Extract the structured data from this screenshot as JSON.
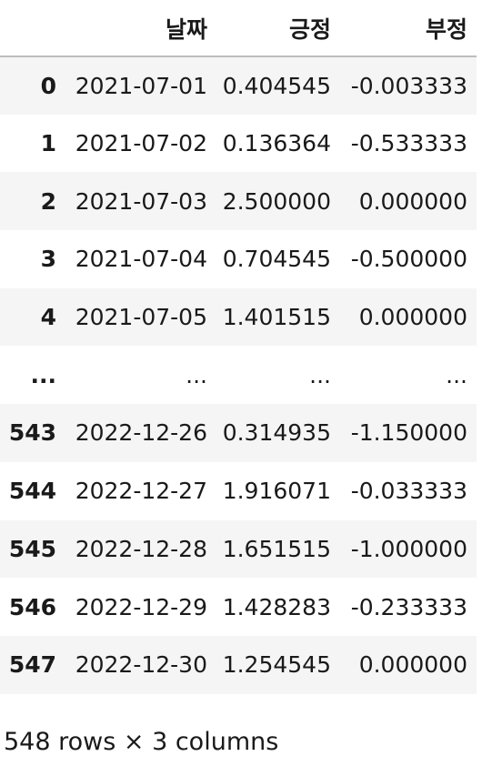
{
  "table": {
    "columns": [
      "",
      "날짜",
      "긍정",
      "부정"
    ],
    "rows": [
      {
        "index": "0",
        "date": "2021-07-01",
        "positive": "0.404545",
        "negative": "-0.003333"
      },
      {
        "index": "1",
        "date": "2021-07-02",
        "positive": "0.136364",
        "negative": "-0.533333"
      },
      {
        "index": "2",
        "date": "2021-07-03",
        "positive": "2.500000",
        "negative": "0.000000"
      },
      {
        "index": "3",
        "date": "2021-07-04",
        "positive": "0.704545",
        "negative": "-0.500000"
      },
      {
        "index": "4",
        "date": "2021-07-05",
        "positive": "1.401515",
        "negative": "0.000000"
      },
      {
        "index": "...",
        "date": "...",
        "positive": "...",
        "negative": "..."
      },
      {
        "index": "543",
        "date": "2022-12-26",
        "positive": "0.314935",
        "negative": "-1.150000"
      },
      {
        "index": "544",
        "date": "2022-12-27",
        "positive": "1.916071",
        "negative": "-0.033333"
      },
      {
        "index": "545",
        "date": "2022-12-28",
        "positive": "1.651515",
        "negative": "-1.000000"
      },
      {
        "index": "546",
        "date": "2022-12-29",
        "positive": "1.428283",
        "negative": "-0.233333"
      },
      {
        "index": "547",
        "date": "2022-12-30",
        "positive": "1.254545",
        "negative": "0.000000"
      }
    ]
  },
  "caption": "548 rows × 3 columns",
  "colors": {
    "stripe": "#f5f5f5",
    "header_border": "#bdbdbd",
    "text": "#1a1a1a"
  }
}
